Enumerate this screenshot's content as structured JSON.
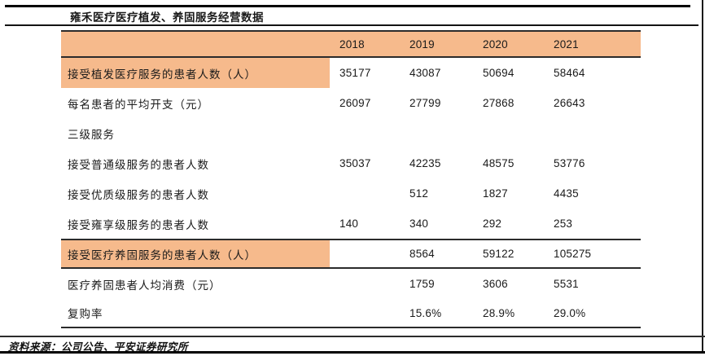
{
  "page": {
    "title": "雍禾医疗医疗植发、养固服务经营数据",
    "source_note": "资料来源：公司公告、平安证券研究所"
  },
  "colors": {
    "highlight_orange": "#F6BA8C",
    "table_line": "#2b2b2b",
    "text": "#1a1a1a"
  },
  "chart_data": {
    "type": "table",
    "title": "雍禾医疗医疗植发、养固服务经营数据",
    "columns": [
      "2018",
      "2019",
      "2020",
      "2021"
    ],
    "rows": [
      {
        "label": "接受植发医疗服务的患者人数（人）",
        "values": [
          "35177",
          "43087",
          "50694",
          "58464"
        ],
        "highlight": true,
        "border_top": false,
        "border_bottom": false
      },
      {
        "label": "每名患者的平均开支（元）",
        "values": [
          "26097",
          "27799",
          "27868",
          "26643"
        ],
        "highlight": false,
        "border_top": false,
        "border_bottom": false
      },
      {
        "label": "三级服务",
        "values": [
          "",
          "",
          "",
          ""
        ],
        "highlight": false,
        "border_top": false,
        "border_bottom": false,
        "section": true
      },
      {
        "label": "接受普通级服务的患者人数",
        "values": [
          "35037",
          "42235",
          "48575",
          "53776"
        ],
        "highlight": false,
        "border_top": false,
        "border_bottom": false
      },
      {
        "label": "接受优质级服务的患者人数",
        "values": [
          "",
          "512",
          "1827",
          "4435"
        ],
        "highlight": false,
        "border_top": false,
        "border_bottom": false
      },
      {
        "label": "接受雍享级服务的患者人数",
        "values": [
          "140",
          "340",
          "292",
          "253"
        ],
        "highlight": false,
        "border_top": false,
        "border_bottom": false
      },
      {
        "label": "接受医疗养固服务的患者人数（人）",
        "values": [
          "",
          "8564",
          "59122",
          "105275"
        ],
        "highlight": true,
        "border_top": true,
        "border_bottom": true
      },
      {
        "label": "医疗养固患者人均消费（元）",
        "values": [
          "",
          "1759",
          "3606",
          "5531"
        ],
        "highlight": false,
        "border_top": false,
        "border_bottom": false
      },
      {
        "label": "复购率",
        "values": [
          "",
          "15.6%",
          "28.9%",
          "29.0%"
        ],
        "highlight": false,
        "border_top": false,
        "border_bottom": false
      }
    ]
  }
}
